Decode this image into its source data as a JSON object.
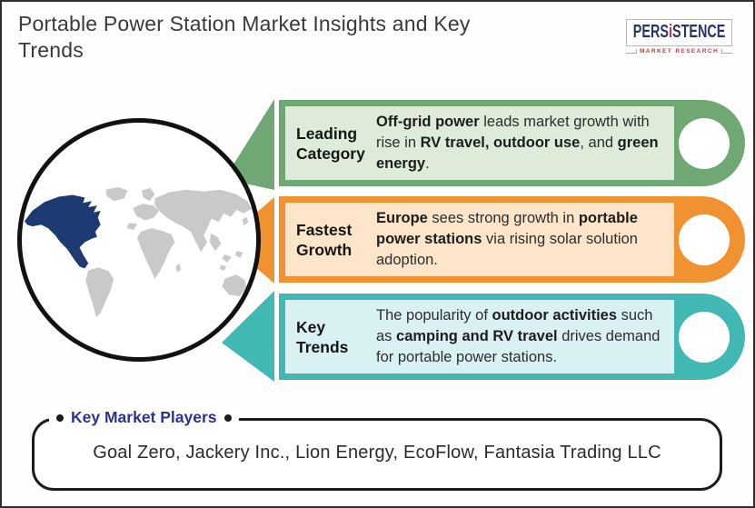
{
  "header": {
    "title_line1": "Portable Power Station Market Insights and Key",
    "title_line2": "Trends",
    "logo": {
      "brand_left": "PERS",
      "brand_i": "i",
      "brand_right": "STENCE",
      "tagline": "MARKET RESEARCH",
      "brand_color": "#27356c",
      "accent_color": "#d0312c"
    }
  },
  "map": {
    "description": "world map inside circle, North America highlighted",
    "highlight_region": "north-america",
    "highlight_color": "#1e3a72",
    "base_color": "#c9c9c9"
  },
  "banners": [
    {
      "label": "Leading Category",
      "color": "#6fa873",
      "inner_color": "#ddebd8",
      "segments": [
        {
          "t": "Off-grid power",
          "b": true
        },
        {
          "t": " leads market growth with rise in ",
          "b": false
        },
        {
          "t": "RV travel, outdoor use",
          "b": true
        },
        {
          "t": ", and ",
          "b": false
        },
        {
          "t": "green energy",
          "b": true
        },
        {
          "t": ".",
          "b": false
        }
      ]
    },
    {
      "label": "Fastest Growth",
      "color": "#f0922f",
      "inner_color": "#fce5c8",
      "segments": [
        {
          "t": "Europe",
          "b": true
        },
        {
          "t": " sees strong growth in ",
          "b": false
        },
        {
          "t": "portable power stations",
          "b": true
        },
        {
          "t": " via rising solar solution adoption.",
          "b": false
        }
      ]
    },
    {
      "label": "Key Trends",
      "color": "#41b8b4",
      "inner_color": "#d9f1f2",
      "segments": [
        {
          "t": "The popularity of ",
          "b": false
        },
        {
          "t": "outdoor activities",
          "b": true
        },
        {
          "t": " such as ",
          "b": false
        },
        {
          "t": "camping and RV travel",
          "b": true
        },
        {
          "t": " drives demand for portable power stations.",
          "b": false
        }
      ]
    }
  ],
  "players": {
    "heading": "Key Market Players",
    "heading_color": "#2e3192",
    "companies": "Goal Zero, Jackery Inc., Lion Energy, EcoFlow, Fantasia Trading LLC"
  }
}
